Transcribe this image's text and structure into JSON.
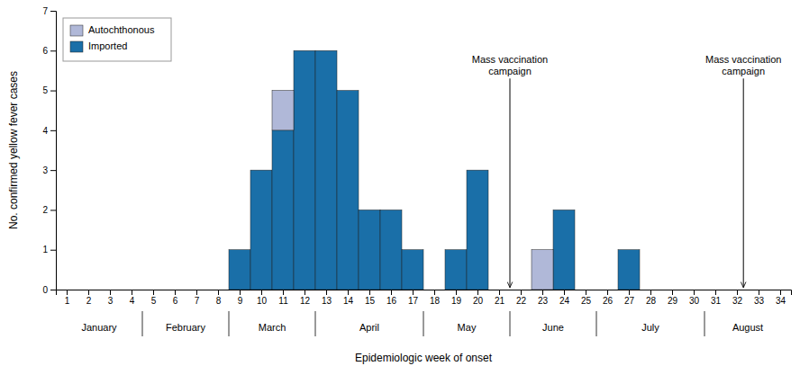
{
  "chart_data": {
    "type": "bar",
    "stacked": true,
    "x": [
      1,
      2,
      3,
      4,
      5,
      6,
      7,
      8,
      9,
      10,
      11,
      12,
      13,
      14,
      15,
      16,
      17,
      18,
      19,
      20,
      21,
      22,
      23,
      24,
      25,
      26,
      27,
      28,
      29,
      30,
      31,
      32,
      33,
      34
    ],
    "xlim": [
      0.5,
      34.5
    ],
    "xticks": [
      1,
      2,
      3,
      4,
      5,
      6,
      7,
      8,
      9,
      10,
      11,
      12,
      13,
      14,
      15,
      16,
      17,
      18,
      19,
      20,
      21,
      22,
      23,
      24,
      25,
      26,
      27,
      28,
      29,
      30,
      31,
      32,
      33,
      34
    ],
    "series": [
      {
        "name": "Imported",
        "color": "#1a6fa8",
        "values": [
          0,
          0,
          0,
          0,
          0,
          0,
          0,
          0,
          1,
          3,
          4,
          6,
          6,
          5,
          2,
          2,
          1,
          0,
          1,
          3,
          0,
          0,
          0,
          2,
          0,
          0,
          1,
          0,
          0,
          0,
          0,
          0,
          0,
          0
        ]
      },
      {
        "name": "Autochthonous",
        "color": "#b0b8d8",
        "values": [
          0,
          0,
          0,
          0,
          0,
          0,
          0,
          0,
          0,
          0,
          1,
          0,
          0,
          0,
          0,
          0,
          0,
          0,
          0,
          0,
          0,
          0,
          1,
          0,
          0,
          0,
          0,
          0,
          0,
          0,
          0,
          0,
          0,
          0
        ]
      }
    ],
    "ylim": [
      0,
      7
    ],
    "yticks": [
      0,
      1,
      2,
      3,
      4,
      5,
      6,
      7
    ],
    "ylabel": "No. confirmed yellow fever cases",
    "xlabel": "Epidemiologic week of onset",
    "month_separators": [
      4.5,
      8.5,
      12.5,
      17.5,
      21.5,
      25.5,
      30.5
    ],
    "month_labels": [
      {
        "label": "January",
        "x": 2.5
      },
      {
        "label": "February",
        "x": 6.5
      },
      {
        "label": "March",
        "x": 10.5
      },
      {
        "label": "April",
        "x": 15.0
      },
      {
        "label": "May",
        "x": 19.5
      },
      {
        "label": "June",
        "x": 23.5
      },
      {
        "label": "July",
        "x": 28.0
      },
      {
        "label": "August",
        "x": 32.5
      }
    ],
    "annotations": [
      {
        "text": "Mass vaccination\ncampaign",
        "x": 21.5,
        "y": 5.3,
        "arrow_x": 21.5,
        "arrow_y": 0.05
      },
      {
        "text": "Mass vaccination\ncampaign",
        "x": 32.3,
        "y": 5.3,
        "arrow_x": 32.3,
        "arrow_y": 0.05
      }
    ],
    "legend": "upper left",
    "grid": false
  }
}
